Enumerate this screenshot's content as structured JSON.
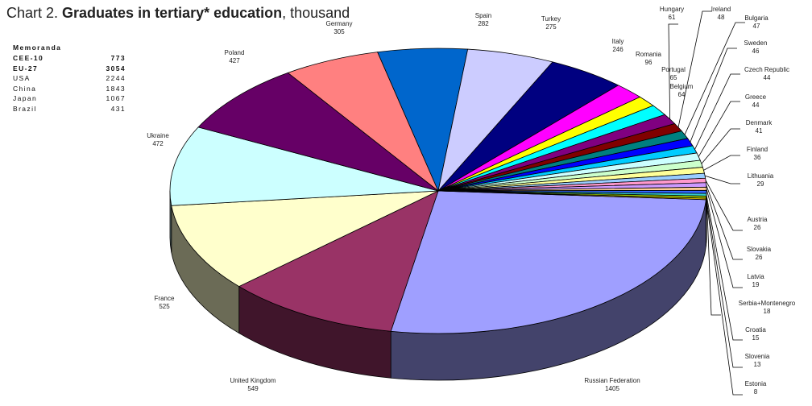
{
  "title": {
    "prefix": "Chart 2. ",
    "bold": "Graduates in tertiary* education",
    "suffix": ", thousand"
  },
  "memoranda": {
    "heading": "Memoranda",
    "rows": [
      {
        "label": "CEE-10",
        "value": "773",
        "bold": true
      },
      {
        "label": "EU-27",
        "value": "3054",
        "bold": true
      },
      {
        "label": "USA",
        "value": "2244",
        "bold": false
      },
      {
        "label": "China",
        "value": "1843",
        "bold": false
      },
      {
        "label": "Japan",
        "value": "1067",
        "bold": false
      },
      {
        "label": "Brazil",
        "value": "431",
        "bold": false
      }
    ]
  },
  "chart_data": {
    "type": "pie",
    "title": "Chart 2. Graduates in tertiary* education, thousand",
    "unit": "thousand",
    "slices": [
      {
        "name": "Russian Federation",
        "value": 1405,
        "color": "#9f9fff"
      },
      {
        "name": "United Kingdom",
        "value": 549,
        "color": "#993366"
      },
      {
        "name": "France",
        "value": 525,
        "color": "#ffffcc"
      },
      {
        "name": "Ukraine",
        "value": 472,
        "color": "#ccffff"
      },
      {
        "name": "Poland",
        "value": 427,
        "color": "#660066"
      },
      {
        "name": "Germany",
        "value": 305,
        "color": "#ff8080"
      },
      {
        "name": "Spain",
        "value": 282,
        "color": "#0066cc"
      },
      {
        "name": "Turkey",
        "value": 275,
        "color": "#ccccff"
      },
      {
        "name": "Italy",
        "value": 246,
        "color": "#000080"
      },
      {
        "name": "Romania",
        "value": 96,
        "color": "#ff00ff"
      },
      {
        "name": "Portugal",
        "value": 65,
        "color": "#ffff00"
      },
      {
        "name": "Belgium",
        "value": 64,
        "color": "#00ffff"
      },
      {
        "name": "Hungary",
        "value": 61,
        "color": "#800080"
      },
      {
        "name": "Ireland",
        "value": 48,
        "color": "#800000"
      },
      {
        "name": "Bulgaria",
        "value": 47,
        "color": "#008080"
      },
      {
        "name": "Sweden",
        "value": 46,
        "color": "#0000ff"
      },
      {
        "name": "Czech Republic",
        "value": 44,
        "color": "#00ccff"
      },
      {
        "name": "Greece",
        "value": 44,
        "color": "#ccffff"
      },
      {
        "name": "Denmark",
        "value": 41,
        "color": "#ccffcc"
      },
      {
        "name": "Finland",
        "value": 36,
        "color": "#ffff99"
      },
      {
        "name": "Lithuania",
        "value": 29,
        "color": "#99ccff"
      },
      {
        "name": "Austria",
        "value": 26,
        "color": "#ff99cc"
      },
      {
        "name": "Slovakia",
        "value": 26,
        "color": "#cc99ff"
      },
      {
        "name": "Latvia",
        "value": 19,
        "color": "#ffcc99"
      },
      {
        "name": "Serbia+Montenegro",
        "value": 18,
        "color": "#3366ff"
      },
      {
        "name": "Croatia",
        "value": 15,
        "color": "#33cccc"
      },
      {
        "name": "Slovenia",
        "value": 13,
        "color": "#99cc00"
      },
      {
        "name": "Estonia",
        "value": 8,
        "color": "#ffcc00"
      }
    ]
  }
}
